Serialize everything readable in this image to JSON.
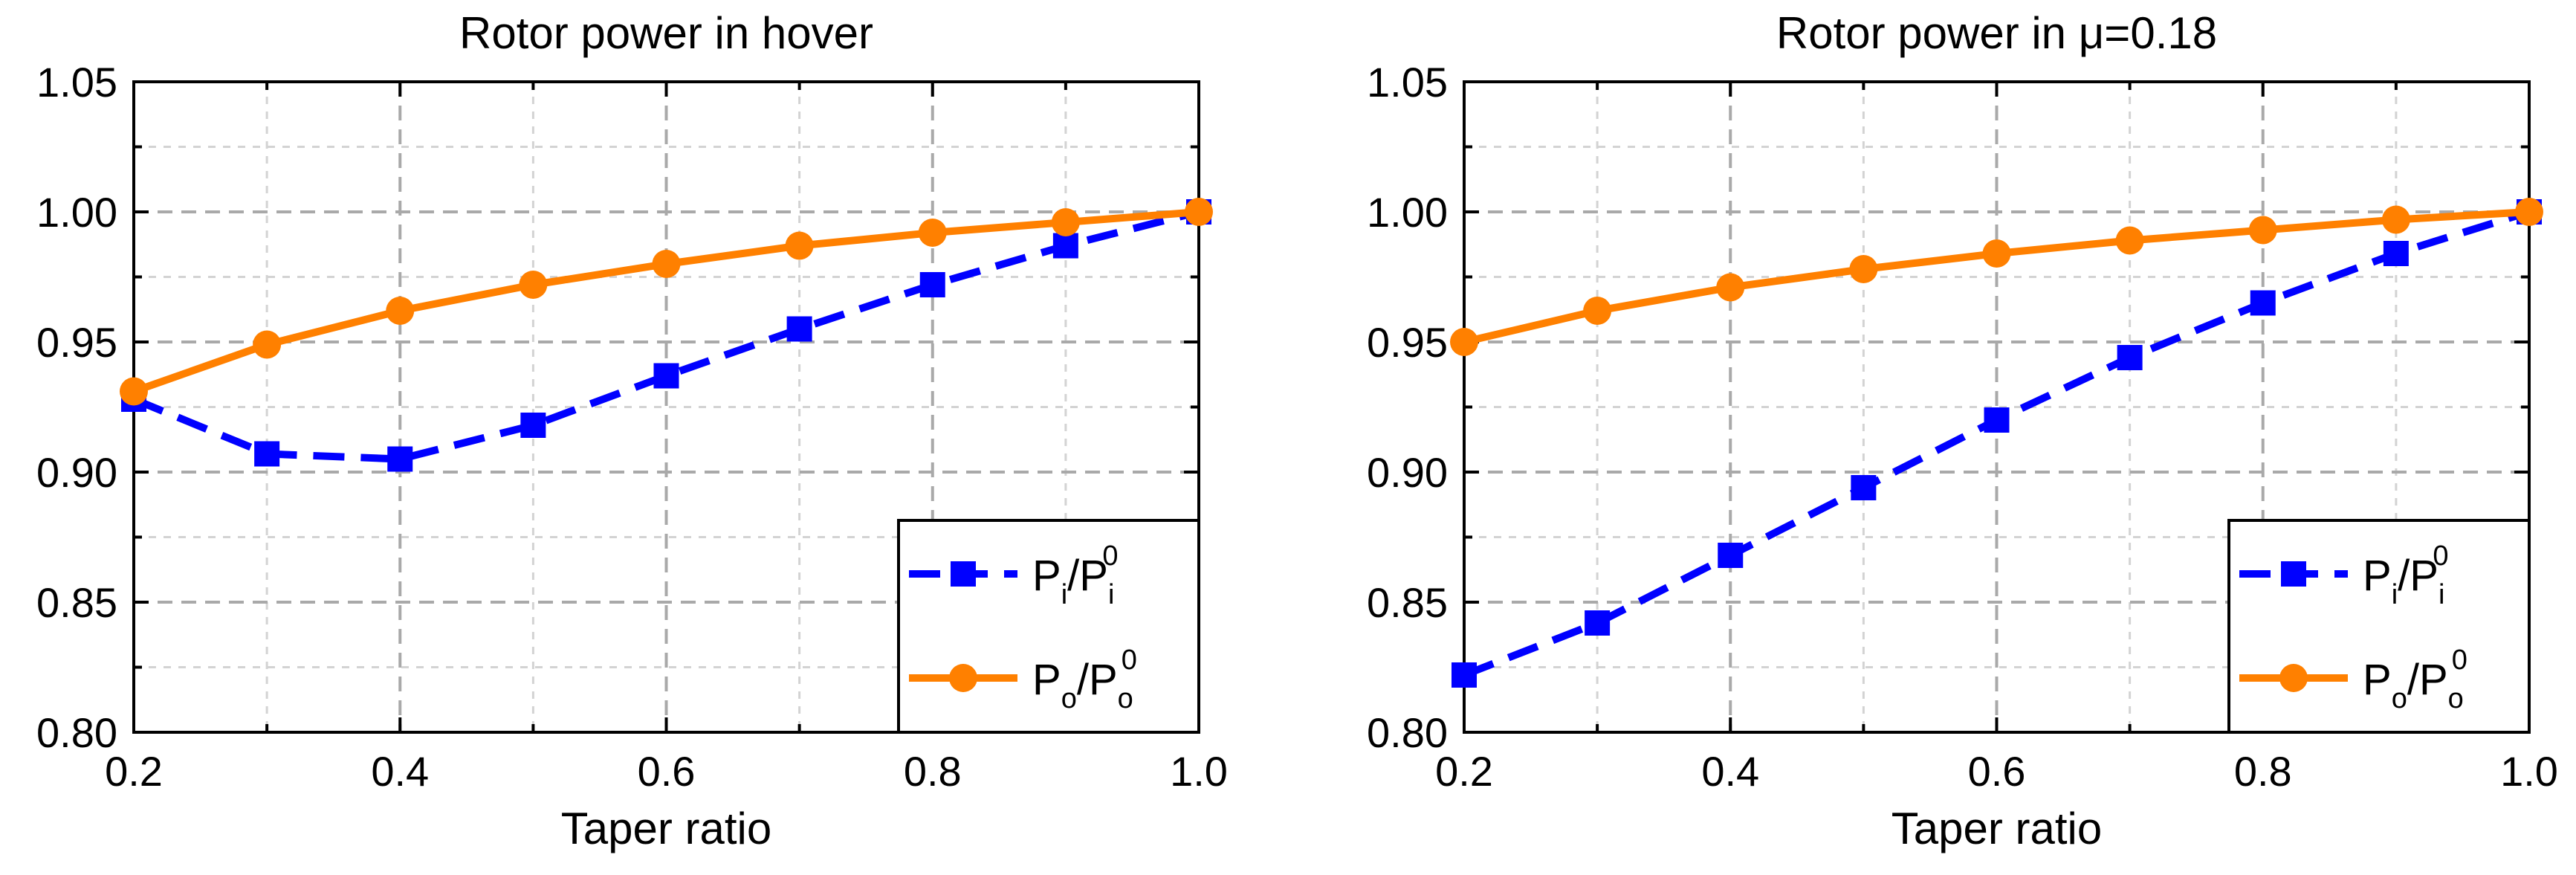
{
  "chart_data": [
    {
      "type": "line",
      "title": "Rotor power in hover",
      "xlabel": "Taper ratio",
      "ylabel": "",
      "xlim": [
        0.2,
        1.0
      ],
      "ylim": [
        0.8,
        1.05
      ],
      "xticks": [
        "0.2",
        "0.4",
        "0.6",
        "0.8",
        "1.0"
      ],
      "yticks": [
        "0.80",
        "0.85",
        "0.90",
        "0.95",
        "1.00",
        "1.05"
      ],
      "grid": true,
      "legend_position": "bottom-right",
      "x": [
        0.2,
        0.3,
        0.4,
        0.5,
        0.6,
        0.7,
        0.8,
        0.9,
        1.0
      ],
      "series": [
        {
          "name": "Pi/Pi0",
          "label_main": "P",
          "label_sub": "i",
          "label_mid": "/P",
          "label_sub2": "i",
          "label_sup": "0",
          "color": "#0000ff",
          "marker": "square",
          "style": "dashed",
          "values": [
            0.928,
            0.907,
            0.905,
            0.918,
            0.937,
            0.955,
            0.972,
            0.987,
            1.0
          ]
        },
        {
          "name": "Po/Po0",
          "label_main": "P",
          "label_sub": "o",
          "label_mid": "/P",
          "label_sub2": "o",
          "label_sup": "0",
          "color": "#ff8000",
          "marker": "circle",
          "style": "solid",
          "values": [
            0.931,
            0.949,
            0.962,
            0.972,
            0.98,
            0.987,
            0.992,
            0.996,
            1.0
          ]
        }
      ]
    },
    {
      "type": "line",
      "title": "Rotor power in μ=0.18",
      "xlabel": "Taper ratio",
      "ylabel": "",
      "xlim": [
        0.2,
        1.0
      ],
      "ylim": [
        0.8,
        1.05
      ],
      "xticks": [
        "0.2",
        "0.4",
        "0.6",
        "0.8",
        "1.0"
      ],
      "yticks": [
        "0.80",
        "0.85",
        "0.90",
        "0.95",
        "1.00",
        "1.05"
      ],
      "grid": true,
      "legend_position": "bottom-right",
      "x": [
        0.2,
        0.3,
        0.4,
        0.5,
        0.6,
        0.7,
        0.8,
        0.9,
        1.0
      ],
      "series": [
        {
          "name": "Pi/Pi0",
          "label_main": "P",
          "label_sub": "i",
          "label_mid": "/P",
          "label_sub2": "i",
          "label_sup": "0",
          "color": "#0000ff",
          "marker": "square",
          "style": "dashed",
          "values": [
            0.822,
            0.842,
            0.868,
            0.894,
            0.92,
            0.944,
            0.965,
            0.984,
            1.0
          ]
        },
        {
          "name": "Po/Po0",
          "label_main": "P",
          "label_sub": "o",
          "label_mid": "/P",
          "label_sub2": "o",
          "label_sup": "0",
          "color": "#ff8000",
          "marker": "circle",
          "style": "solid",
          "values": [
            0.95,
            0.962,
            0.971,
            0.978,
            0.984,
            0.989,
            0.993,
            0.997,
            1.0
          ]
        }
      ]
    }
  ]
}
